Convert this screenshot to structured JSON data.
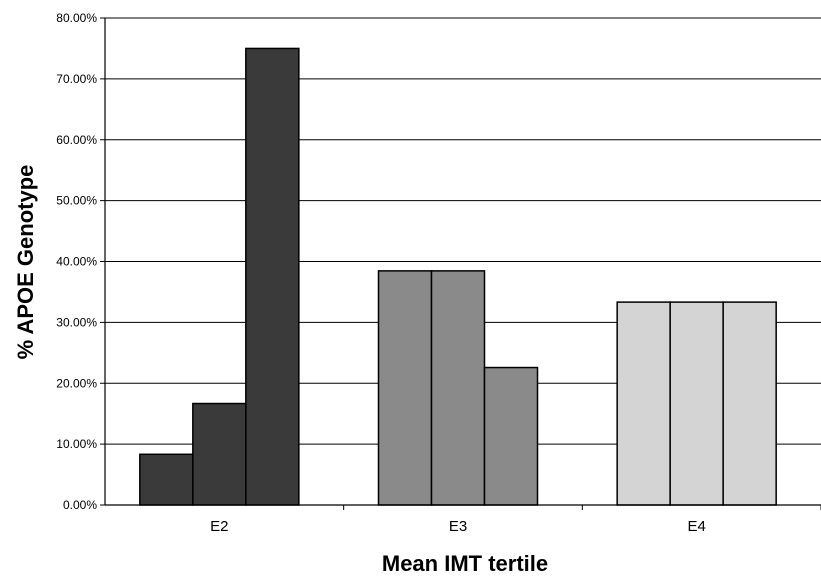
{
  "chart_data": {
    "type": "bar",
    "title": "",
    "xlabel": "Mean IMT tertile",
    "ylabel": "% APOE Genotype",
    "categories": [
      "E2",
      "E3",
      "E4"
    ],
    "series": [
      {
        "values": [
          8.33,
          38.46,
          33.33
        ]
      },
      {
        "values": [
          16.67,
          38.46,
          33.33
        ]
      },
      {
        "values": [
          75.0,
          22.58,
          33.33
        ]
      }
    ],
    "category_colors": [
      "#3a3a3a",
      "#8a8a8a",
      "#d4d4d4"
    ],
    "ylim": [
      0,
      80
    ],
    "yticks": [
      0,
      10,
      20,
      30,
      40,
      50,
      60,
      70,
      80
    ],
    "ytick_labels": [
      "0.00%",
      "10.00%",
      "20.00%",
      "30.00%",
      "40.00%",
      "50.00%",
      "60.00%",
      "70.00%",
      "80.00%"
    ],
    "grid": true,
    "legend": "none"
  }
}
